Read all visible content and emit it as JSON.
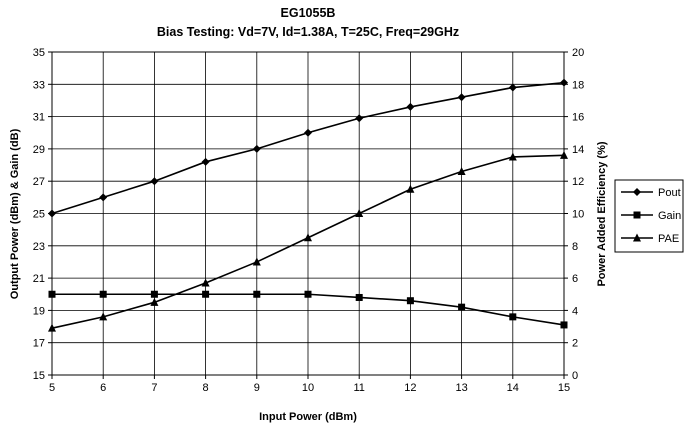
{
  "chart_data": {
    "type": "line",
    "title": "EG1055B",
    "subtitle": "Bias Testing:  Vd=7V,  Id=1.38A,  T=25C,  Freq=29GHz",
    "xlabel": "Input Power (dBm)",
    "ylabel": "Output Power (dBm) & Gain (dB)",
    "y2label": "Power Added Efficiency (%)",
    "xlim": [
      5,
      15
    ],
    "ylim": [
      15,
      35
    ],
    "y2lim": [
      0,
      20
    ],
    "x_ticks": [
      5,
      6,
      7,
      8,
      9,
      10,
      11,
      12,
      13,
      14,
      15
    ],
    "y_ticks": [
      15,
      17,
      19,
      21,
      23,
      25,
      27,
      29,
      31,
      33,
      35
    ],
    "y2_ticks": [
      0,
      2,
      4,
      6,
      8,
      10,
      12,
      14,
      16,
      18,
      20
    ],
    "grid": true,
    "legend_position": "right",
    "x": [
      5,
      6,
      7,
      8,
      9,
      10,
      11,
      12,
      13,
      14,
      15
    ],
    "series": [
      {
        "name": "Pout",
        "marker": "diamond",
        "axis": "left",
        "values": [
          25.0,
          26.0,
          27.0,
          28.2,
          29.0,
          30.0,
          30.9,
          31.6,
          32.2,
          32.8,
          33.1
        ]
      },
      {
        "name": "Gain",
        "marker": "square",
        "axis": "left",
        "values": [
          20.0,
          20.0,
          20.0,
          20.0,
          20.0,
          20.0,
          19.8,
          19.6,
          19.2,
          18.6,
          18.1
        ]
      },
      {
        "name": "PAE",
        "marker": "triangle",
        "axis": "right",
        "values": [
          2.9,
          3.6,
          4.5,
          5.7,
          7.0,
          8.5,
          10.0,
          11.5,
          12.6,
          13.5,
          13.6
        ]
      }
    ],
    "colors": {
      "line": "#000000",
      "grid": "#000000",
      "background": "#ffffff"
    }
  }
}
